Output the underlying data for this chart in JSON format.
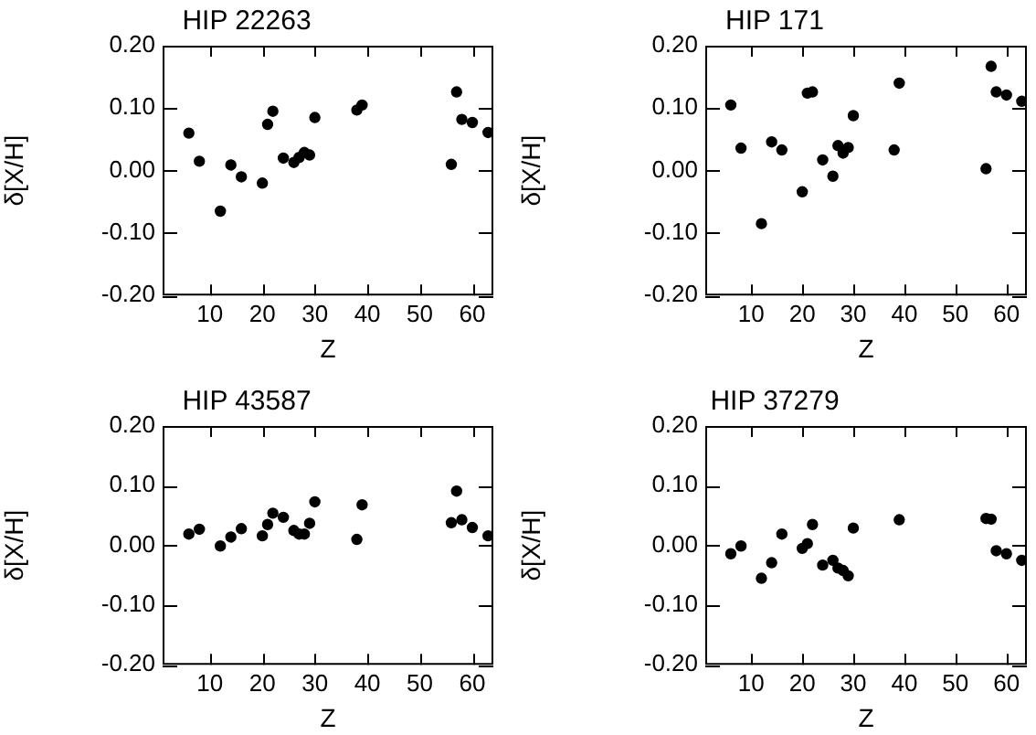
{
  "chart_data": [
    {
      "type": "scatter",
      "title": "HIP 22263",
      "xlabel": "Z",
      "ylabel": "δ[X/H]",
      "marker": "circle",
      "xlim": [
        1,
        64
      ],
      "ylim": [
        -0.2,
        0.2
      ],
      "xticks": [
        10,
        20,
        30,
        40,
        50,
        60
      ],
      "yticks": [
        {
          "value": -0.2,
          "label": "-0.20"
        },
        {
          "value": -0.1,
          "label": "-0.10"
        },
        {
          "value": 0,
          "label": "0.00"
        },
        {
          "value": 0.1,
          "label": "0.10"
        },
        {
          "value": 0.2,
          "label": "0.20"
        }
      ],
      "x": [
        6,
        8,
        12,
        14,
        16,
        20,
        21,
        22,
        24,
        26,
        27,
        28,
        29,
        30,
        38,
        39,
        56,
        57,
        58,
        60,
        63
      ],
      "series": [
        {
          "color": "#000000",
          "values": [
            0.06,
            0.015,
            -0.065,
            0.009,
            -0.01,
            -0.02,
            0.074,
            0.095,
            0.02,
            0.013,
            0.021,
            0.029,
            0.025,
            0.085,
            0.097,
            0.105,
            0.01,
            0.126,
            0.082,
            0.077,
            0.061
          ]
        }
      ]
    },
    {
      "type": "scatter",
      "title": "HIP 171",
      "xlabel": "Z",
      "ylabel": "δ[X/H]",
      "marker": "circle",
      "xlim": [
        1,
        64
      ],
      "ylim": [
        -0.2,
        0.2
      ],
      "xticks": [
        10,
        20,
        30,
        40,
        50,
        60
      ],
      "yticks": [
        {
          "value": -0.2,
          "label": "-0.20"
        },
        {
          "value": -0.1,
          "label": "-0.10"
        },
        {
          "value": 0,
          "label": "0.00"
        },
        {
          "value": 0.1,
          "label": "0.10"
        },
        {
          "value": 0.2,
          "label": "0.20"
        }
      ],
      "x": [
        6,
        8,
        12,
        14,
        16,
        20,
        21,
        22,
        24,
        26,
        27,
        28,
        29,
        30,
        38,
        39,
        56,
        57,
        58,
        60,
        63
      ],
      "series": [
        {
          "color": "#000000",
          "values": [
            0.105,
            0.036,
            -0.085,
            0.046,
            0.033,
            -0.034,
            0.124,
            0.126,
            0.017,
            -0.009,
            0.04,
            0.028,
            0.037,
            0.088,
            0.033,
            0.14,
            0.003,
            0.167,
            0.126,
            0.121,
            0.111
          ]
        }
      ]
    },
    {
      "type": "scatter",
      "title": "HIP 43587",
      "xlabel": "Z",
      "ylabel": "δ[X/H]",
      "marker": "circle",
      "xlim": [
        1,
        64
      ],
      "ylim": [
        -0.2,
        0.2
      ],
      "xticks": [
        10,
        20,
        30,
        40,
        50,
        60
      ],
      "yticks": [
        {
          "value": -0.2,
          "label": "-0.20"
        },
        {
          "value": -0.1,
          "label": "-0.10"
        },
        {
          "value": 0,
          "label": "0.00"
        },
        {
          "value": 0.1,
          "label": "0.10"
        },
        {
          "value": 0.2,
          "label": "0.20"
        }
      ],
      "x": [
        6,
        8,
        12,
        14,
        16,
        20,
        21,
        22,
        24,
        26,
        27,
        28,
        29,
        30,
        38,
        39,
        56,
        57,
        58,
        60,
        63
      ],
      "series": [
        {
          "color": "#000000",
          "values": [
            0.019,
            0.027,
            -0.001,
            0.014,
            0.028,
            0.016,
            0.035,
            0.054,
            0.047,
            0.025,
            0.019,
            0.019,
            0.037,
            0.073,
            0.01,
            0.068,
            0.038,
            0.091,
            0.043,
            0.03,
            0.016
          ]
        }
      ]
    },
    {
      "type": "scatter",
      "title": "HIP 37279",
      "xlabel": "Z",
      "ylabel": "δ[X/H]",
      "marker": "circle",
      "xlim": [
        1,
        64
      ],
      "ylim": [
        -0.2,
        0.2
      ],
      "xticks": [
        10,
        20,
        30,
        40,
        50,
        60
      ],
      "yticks": [
        {
          "value": -0.2,
          "label": "-0.20"
        },
        {
          "value": -0.1,
          "label": "-0.10"
        },
        {
          "value": 0,
          "label": "0.00"
        },
        {
          "value": 0.1,
          "label": "0.10"
        },
        {
          "value": 0.2,
          "label": "0.20"
        }
      ],
      "x": [
        6,
        8,
        12,
        14,
        16,
        20,
        21,
        22,
        24,
        26,
        27,
        28,
        29,
        30,
        39,
        56,
        57,
        58,
        60,
        63
      ],
      "series": [
        {
          "color": "#000000",
          "values": [
            -0.014,
            -0.001,
            -0.055,
            -0.029,
            0.019,
            -0.005,
            0.003,
            0.035,
            -0.033,
            -0.025,
            -0.038,
            -0.042,
            -0.051,
            0.029,
            0.043,
            0.045,
            0.044,
            -0.009,
            -0.014,
            -0.025
          ]
        }
      ]
    }
  ]
}
